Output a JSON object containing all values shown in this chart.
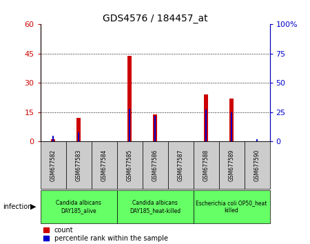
{
  "title": "GDS4576 / 184457_at",
  "samples": [
    "GSM677582",
    "GSM677583",
    "GSM677584",
    "GSM677585",
    "GSM677586",
    "GSM677587",
    "GSM677588",
    "GSM677589",
    "GSM677590"
  ],
  "count_values": [
    1,
    12,
    0,
    44,
    14,
    0,
    24,
    22,
    0
  ],
  "percentile_values": [
    5,
    8,
    0,
    28,
    22,
    0,
    27,
    25,
    2
  ],
  "left_ylim": [
    0,
    60
  ],
  "right_ylim": [
    0,
    100
  ],
  "left_yticks": [
    0,
    15,
    30,
    45,
    60
  ],
  "right_yticks": [
    0,
    25,
    50,
    75,
    100
  ],
  "left_yticklabels": [
    "0",
    "15",
    "30",
    "45",
    "60"
  ],
  "right_yticklabels": [
    "0",
    "25",
    "50",
    "75",
    "100%"
  ],
  "count_color": "#cc0000",
  "percentile_color": "#0000cc",
  "count_bar_width": 0.18,
  "percentile_bar_width": 0.07,
  "groups": [
    {
      "label": "Candida albicans\nDAY185_alive",
      "start": 0,
      "end": 2
    },
    {
      "label": "Candida albicans\nDAY185_heat-killed",
      "start": 3,
      "end": 5
    },
    {
      "label": "Escherichia coli OP50_heat\nkilled",
      "start": 6,
      "end": 8
    }
  ],
  "group_color": "#66ff66",
  "tick_bg_color": "#cccccc",
  "infection_label": "infection",
  "legend_count_label": "count",
  "legend_percentile_label": "percentile rank within the sample",
  "background_color": "#ffffff",
  "ylabel_left_color": "#cc0000",
  "ylabel_right_color": "#0000cc",
  "grid_yticks": [
    15,
    30,
    45
  ]
}
